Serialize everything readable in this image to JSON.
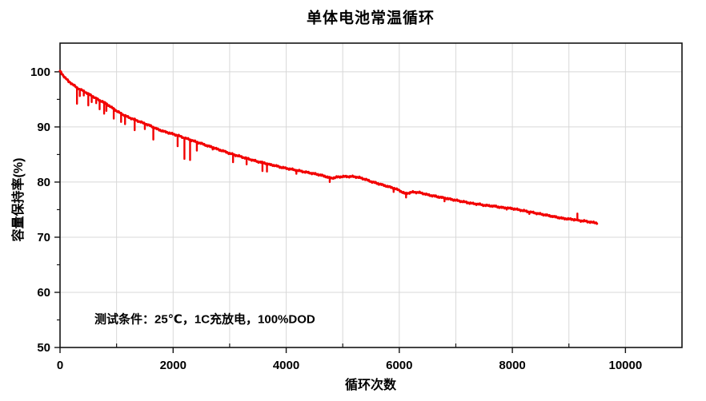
{
  "figure": {
    "background": "#ffffff"
  },
  "chart_data": {
    "type": "line",
    "title": "单体电池常温循环",
    "xlabel": "循环次数",
    "ylabel": "容量保持率(%)",
    "xlim": [
      0,
      11000
    ],
    "ylim": [
      50,
      105.2
    ],
    "x_major_ticks": [
      0,
      2000,
      4000,
      6000,
      8000,
      10000
    ],
    "x_minor_ticks": [
      1000,
      3000,
      5000,
      7000,
      9000
    ],
    "y_major_ticks": [
      50,
      60,
      70,
      80,
      90,
      100
    ],
    "y_minor_ticks": [
      55,
      65,
      75,
      85,
      95
    ],
    "grid": {
      "vertical_step": 1000,
      "horizontal_values": [
        60,
        70,
        80,
        90,
        100
      ],
      "color": "#d8d8d8",
      "visible": true
    },
    "legend": null,
    "line_color": "#f20000",
    "axis_color": "#141414",
    "annotation": {
      "text": "测试条件：25℃，1C充放电，100%DOD",
      "x": 600,
      "y": 55.2
    },
    "series": [
      {
        "name": "容量保持率",
        "points": [
          [
            0,
            100.1
          ],
          [
            30,
            99.7
          ],
          [
            60,
            99.3
          ],
          [
            100,
            98.8
          ],
          [
            150,
            98.3
          ],
          [
            200,
            97.9
          ],
          [
            250,
            97.5
          ],
          [
            300,
            97.1
          ],
          [
            350,
            96.8
          ],
          [
            400,
            96.6
          ],
          [
            450,
            96.3
          ],
          [
            500,
            96.0
          ],
          [
            550,
            95.7
          ],
          [
            600,
            95.4
          ],
          [
            650,
            95.1
          ],
          [
            700,
            94.8
          ],
          [
            750,
            94.6
          ],
          [
            800,
            94.3
          ],
          [
            850,
            94.0
          ],
          [
            900,
            93.6
          ],
          [
            950,
            93.3
          ],
          [
            1000,
            92.9
          ],
          [
            1100,
            92.3
          ],
          [
            1200,
            91.8
          ],
          [
            1300,
            91.4
          ],
          [
            1400,
            91.0
          ],
          [
            1500,
            90.6
          ],
          [
            1600,
            90.2
          ],
          [
            1700,
            89.7
          ],
          [
            1800,
            89.3
          ],
          [
            1900,
            89.0
          ],
          [
            2000,
            88.7
          ],
          [
            2100,
            88.4
          ],
          [
            2200,
            88.0
          ],
          [
            2300,
            87.7
          ],
          [
            2400,
            87.3
          ],
          [
            2500,
            87.0
          ],
          [
            2600,
            86.6
          ],
          [
            2700,
            86.3
          ],
          [
            2800,
            85.9
          ],
          [
            2900,
            85.6
          ],
          [
            3000,
            85.2
          ],
          [
            3100,
            84.9
          ],
          [
            3200,
            84.6
          ],
          [
            3300,
            84.3
          ],
          [
            3400,
            84.0
          ],
          [
            3500,
            83.7
          ],
          [
            3600,
            83.5
          ],
          [
            3700,
            83.2
          ],
          [
            3800,
            83.0
          ],
          [
            3900,
            82.7
          ],
          [
            4000,
            82.5
          ],
          [
            4100,
            82.3
          ],
          [
            4200,
            82.1
          ],
          [
            4300,
            81.9
          ],
          [
            4400,
            81.7
          ],
          [
            4500,
            81.5
          ],
          [
            4600,
            81.3
          ],
          [
            4700,
            81.0
          ],
          [
            4800,
            80.7
          ],
          [
            4900,
            80.9
          ],
          [
            5000,
            81.0
          ],
          [
            5100,
            81.0
          ],
          [
            5200,
            81.0
          ],
          [
            5300,
            80.8
          ],
          [
            5400,
            80.5
          ],
          [
            5500,
            80.1
          ],
          [
            5600,
            79.8
          ],
          [
            5700,
            79.5
          ],
          [
            5800,
            79.2
          ],
          [
            5900,
            78.9
          ],
          [
            6000,
            78.5
          ],
          [
            6050,
            78.2
          ],
          [
            6100,
            77.9
          ],
          [
            6150,
            78.0
          ],
          [
            6250,
            78.2
          ],
          [
            6350,
            78.1
          ],
          [
            6400,
            78.0
          ],
          [
            6500,
            77.7
          ],
          [
            6600,
            77.5
          ],
          [
            6700,
            77.3
          ],
          [
            6800,
            77.1
          ],
          [
            6900,
            76.9
          ],
          [
            7000,
            76.7
          ],
          [
            7100,
            76.5
          ],
          [
            7200,
            76.3
          ],
          [
            7300,
            76.1
          ],
          [
            7400,
            76.0
          ],
          [
            7500,
            75.8
          ],
          [
            7600,
            75.7
          ],
          [
            7700,
            75.6
          ],
          [
            7800,
            75.4
          ],
          [
            7900,
            75.3
          ],
          [
            8000,
            75.2
          ],
          [
            8100,
            75.0
          ],
          [
            8200,
            74.8
          ],
          [
            8300,
            74.6
          ],
          [
            8400,
            74.4
          ],
          [
            8500,
            74.2
          ],
          [
            8600,
            74.0
          ],
          [
            8700,
            73.8
          ],
          [
            8800,
            73.6
          ],
          [
            8900,
            73.4
          ],
          [
            9000,
            73.3
          ],
          [
            9100,
            73.2
          ],
          [
            9200,
            73.0
          ],
          [
            9300,
            72.9
          ],
          [
            9400,
            72.7
          ],
          [
            9500,
            72.6
          ]
        ]
      }
    ],
    "noise_spikes": [
      [
        150,
        98.1
      ],
      [
        300,
        94.2
      ],
      [
        350,
        95.6
      ],
      [
        420,
        95.7
      ],
      [
        500,
        93.9
      ],
      [
        560,
        94.5
      ],
      [
        640,
        94.3
      ],
      [
        700,
        93.2
      ],
      [
        780,
        92.4
      ],
      [
        820,
        92.9
      ],
      [
        950,
        91.5
      ],
      [
        1080,
        90.9
      ],
      [
        1150,
        90.5
      ],
      [
        1320,
        89.4
      ],
      [
        1500,
        89.6
      ],
      [
        1650,
        87.7
      ],
      [
        2080,
        86.5
      ],
      [
        2200,
        84.2
      ],
      [
        2300,
        84.0
      ],
      [
        2420,
        85.7
      ],
      [
        2700,
        85.9
      ],
      [
        3060,
        83.6
      ],
      [
        3300,
        83.2
      ],
      [
        3580,
        82.0
      ],
      [
        3660,
        81.9
      ],
      [
        4180,
        81.5
      ],
      [
        4770,
        80.0
      ],
      [
        5900,
        78.2
      ],
      [
        6120,
        77.2
      ],
      [
        6800,
        76.5
      ],
      [
        7900,
        75.0
      ],
      [
        8300,
        74.2
      ],
      [
        9150,
        74.3
      ]
    ]
  }
}
